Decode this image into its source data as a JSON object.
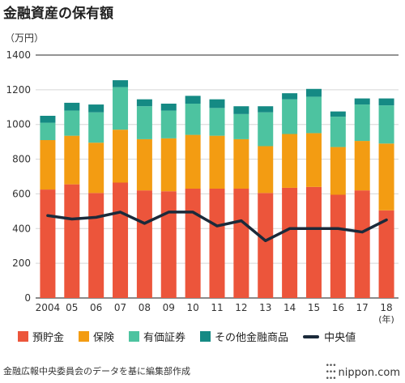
{
  "header": {
    "title": "金融資産の保有額",
    "unit": "（万円）"
  },
  "chart_data": {
    "type": "bar",
    "stacked": true,
    "categories": [
      "2004",
      "05",
      "06",
      "07",
      "08",
      "09",
      "10",
      "11",
      "12",
      "13",
      "14",
      "15",
      "16",
      "17",
      "18"
    ],
    "x_suffix": "(年)",
    "ylim": [
      0,
      1400
    ],
    "yticks": [
      0,
      200,
      400,
      600,
      800,
      1000,
      1200,
      1400
    ],
    "grid": true,
    "series": [
      {
        "name": "預貯金",
        "color": "#ec553b",
        "values": [
          625,
          655,
          605,
          665,
          620,
          615,
          630,
          630,
          630,
          605,
          635,
          640,
          595,
          620,
          505
        ]
      },
      {
        "name": "保険",
        "color": "#f39c12",
        "values": [
          285,
          280,
          290,
          305,
          295,
          305,
          310,
          305,
          285,
          270,
          310,
          310,
          275,
          285,
          385
        ]
      },
      {
        "name": "有価証券",
        "color": "#4dc3a0",
        "values": [
          100,
          145,
          175,
          245,
          190,
          160,
          180,
          160,
          145,
          195,
          200,
          210,
          175,
          210,
          220
        ]
      },
      {
        "name": "その他金融商品",
        "color": "#158a84",
        "values": [
          40,
          45,
          45,
          40,
          40,
          40,
          45,
          50,
          45,
          35,
          35,
          45,
          30,
          35,
          40
        ]
      }
    ],
    "line_series": {
      "name": "中央値",
      "color": "#1b2a3a",
      "values": [
        475,
        455,
        465,
        495,
        430,
        495,
        495,
        415,
        445,
        330,
        400,
        400,
        400,
        380,
        450
      ]
    }
  },
  "footer": {
    "source": "金融広報中央委員会のデータを基に編集部作成",
    "brand": "nippon.com",
    "brand_dots": "•••\n•••\n•••"
  }
}
